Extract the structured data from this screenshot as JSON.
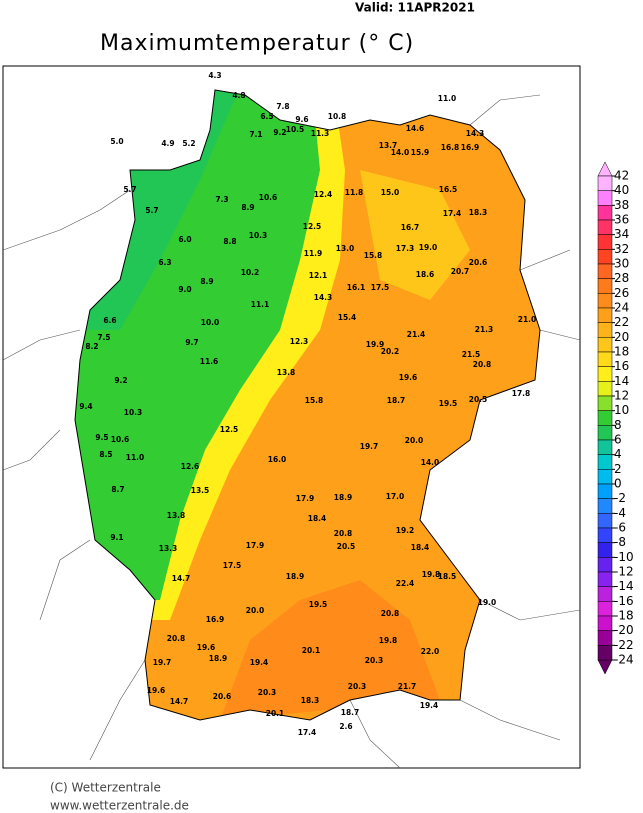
{
  "header": {
    "valid": "Valid:  11APR2021",
    "title": "Maximumtemperatur (° C)"
  },
  "legend": {
    "ticks": [
      42,
      40,
      38,
      36,
      34,
      32,
      30,
      28,
      26,
      24,
      22,
      20,
      18,
      16,
      14,
      12,
      10,
      8,
      6,
      4,
      2,
      0,
      -2,
      -4,
      -6,
      -8,
      -10,
      -12,
      -14,
      -16,
      -18,
      -20,
      -22,
      -24
    ],
    "colors": [
      "#ffb3ff",
      "#ff80ff",
      "#ff3399",
      "#ff3366",
      "#ff3333",
      "#ff4422",
      "#ff6622",
      "#ff7a1a",
      "#ff8c1a",
      "#ffa01a",
      "#ffb31a",
      "#ffc61a",
      "#ffd91a",
      "#ffee1a",
      "#e6f01a",
      "#88e02a",
      "#33cc33",
      "#22c655",
      "#11c49a",
      "#00c8cc",
      "#00bbee",
      "#00a0ff",
      "#2288ff",
      "#3366ff",
      "#3344ff",
      "#3322ee",
      "#6622ee",
      "#8822ee",
      "#bb22dd",
      "#dd22dd",
      "#cc11cc",
      "#990099",
      "#660066"
    ]
  },
  "stations": [
    "4.8",
    "6.5",
    "7.8",
    "9.6",
    "10.8",
    "11.0",
    "14.6",
    "14.3",
    "5.0",
    "4.9",
    "5.2",
    "7.1",
    "9.2",
    "10.5",
    "11.3",
    "13.7",
    "14.0",
    "15.9",
    "16.8",
    "16.9",
    "5.7",
    "7.3",
    "8.9",
    "10.6",
    "12.4",
    "11.8",
    "15.0",
    "16.5",
    "5.7",
    "8.8",
    "10.3",
    "12.5",
    "16.7",
    "17.4",
    "18.3",
    "6.0",
    "9.0",
    "10.2",
    "11.9",
    "13.0",
    "15.8",
    "17.3",
    "19.0",
    "20.6",
    "6.3",
    "8.9",
    "11.1",
    "12.1",
    "16.1",
    "17.5",
    "18.6",
    "20.7",
    "21.0",
    "6.6",
    "10.0",
    "14.3",
    "15.4",
    "7.5",
    "9.7",
    "12.3",
    "19.9",
    "20.2",
    "21.4",
    "21.3",
    "8.2",
    "9.2",
    "11.6",
    "13.8",
    "19.6",
    "21.5",
    "20.8",
    "9.4",
    "10.3",
    "12.5",
    "15.8",
    "18.7",
    "19.5",
    "20.5",
    "17.8",
    "9.5",
    "10.6",
    "12.6",
    "16.0",
    "19.7",
    "20.0",
    "14.0",
    "8.5",
    "11.0",
    "13.5",
    "17.9",
    "18.9",
    "17.0",
    "8.7",
    "13.8",
    "18.4",
    "20.8",
    "19.2",
    "9.1",
    "13.3",
    "17.9",
    "20.5",
    "18.4",
    "14.7",
    "17.5",
    "18.9",
    "22.4",
    "19.8",
    "18.5",
    "16.9",
    "20.0",
    "19.5",
    "20.8",
    "19.0",
    "20.8",
    "19.6",
    "20.1",
    "19.8",
    "22.0",
    "19.7",
    "18.9",
    "19.4",
    "20.3",
    "19.6",
    "20.3",
    "20.3",
    "21.7",
    "14.7",
    "20.6",
    "18.3",
    "18.7",
    "19.4",
    "20.1",
    "17.4",
    "2.6",
    "4.3"
  ],
  "footer": {
    "copyright": "(C) Wetterzentrale",
    "url": "www.wetterzentrale.de"
  }
}
